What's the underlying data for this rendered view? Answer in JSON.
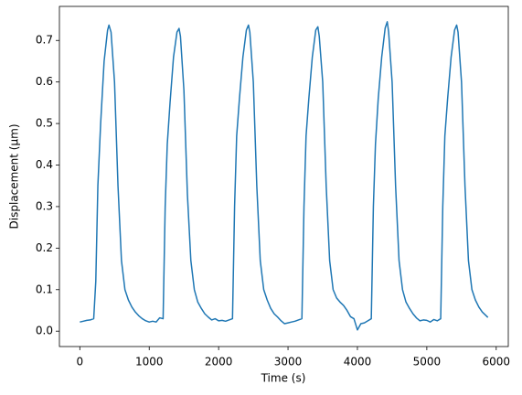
{
  "chart_data": {
    "type": "line",
    "x_label": "Time (s)",
    "y_label": "Displacement (μm)",
    "x": [
      0,
      50,
      100,
      150,
      200,
      230,
      260,
      300,
      350,
      400,
      420,
      450,
      500,
      550,
      600,
      650,
      700,
      750,
      800,
      850,
      900,
      950,
      1000,
      1050,
      1100,
      1150,
      1200,
      1230,
      1260,
      1300,
      1350,
      1400,
      1430,
      1450,
      1500,
      1550,
      1600,
      1650,
      1700,
      1750,
      1800,
      1850,
      1900,
      1950,
      2000,
      2050,
      2100,
      2150,
      2200,
      2230,
      2260,
      2300,
      2350,
      2400,
      2430,
      2450,
      2500,
      2550,
      2600,
      2650,
      2700,
      2750,
      2800,
      2850,
      2900,
      2950,
      3000,
      3050,
      3100,
      3150,
      3200,
      3230,
      3260,
      3300,
      3350,
      3400,
      3430,
      3450,
      3500,
      3550,
      3600,
      3650,
      3700,
      3750,
      3800,
      3850,
      3900,
      3950,
      4000,
      4050,
      4100,
      4150,
      4200,
      4230,
      4260,
      4300,
      4350,
      4400,
      4430,
      4450,
      4500,
      4550,
      4600,
      4650,
      4700,
      4750,
      4800,
      4850,
      4900,
      4950,
      5000,
      5050,
      5100,
      5150,
      5200,
      5230,
      5260,
      5300,
      5350,
      5400,
      5430,
      5450,
      5500,
      5550,
      5600,
      5650,
      5700,
      5750,
      5800,
      5850,
      5880
    ],
    "series": [
      {
        "color": "#1f77b4",
        "values": [
          0.022,
          0.024,
          0.026,
          0.027,
          0.03,
          0.12,
          0.35,
          0.5,
          0.65,
          0.725,
          0.737,
          0.72,
          0.6,
          0.35,
          0.17,
          0.1,
          0.075,
          0.058,
          0.046,
          0.037,
          0.03,
          0.025,
          0.022,
          0.024,
          0.022,
          0.032,
          0.03,
          0.3,
          0.45,
          0.55,
          0.66,
          0.72,
          0.729,
          0.71,
          0.58,
          0.33,
          0.17,
          0.1,
          0.07,
          0.055,
          0.042,
          0.034,
          0.027,
          0.03,
          0.025,
          0.026,
          0.024,
          0.027,
          0.03,
          0.3,
          0.47,
          0.56,
          0.66,
          0.725,
          0.737,
          0.72,
          0.6,
          0.35,
          0.17,
          0.1,
          0.075,
          0.055,
          0.042,
          0.034,
          0.025,
          0.018,
          0.02,
          0.022,
          0.024,
          0.027,
          0.03,
          0.3,
          0.47,
          0.56,
          0.66,
          0.725,
          0.733,
          0.71,
          0.6,
          0.35,
          0.17,
          0.1,
          0.08,
          0.07,
          0.062,
          0.05,
          0.035,
          0.03,
          0.003,
          0.018,
          0.02,
          0.025,
          0.03,
          0.3,
          0.45,
          0.56,
          0.66,
          0.73,
          0.745,
          0.72,
          0.6,
          0.35,
          0.17,
          0.1,
          0.07,
          0.055,
          0.042,
          0.032,
          0.025,
          0.027,
          0.026,
          0.022,
          0.028,
          0.025,
          0.03,
          0.3,
          0.47,
          0.56,
          0.66,
          0.725,
          0.737,
          0.72,
          0.6,
          0.35,
          0.17,
          0.1,
          0.075,
          0.058,
          0.046,
          0.038,
          0.033
        ]
      }
    ],
    "xlim": [
      -294,
      6174
    ],
    "ylim": [
      -0.037,
      0.782
    ],
    "xticks": [
      0,
      1000,
      2000,
      3000,
      4000,
      5000,
      6000
    ],
    "yticks": [
      {
        "value": 0,
        "label": "0.0"
      },
      0.1,
      0.2,
      0.3,
      0.4,
      0.5,
      0.6,
      0.7
    ],
    "grid": false
  }
}
